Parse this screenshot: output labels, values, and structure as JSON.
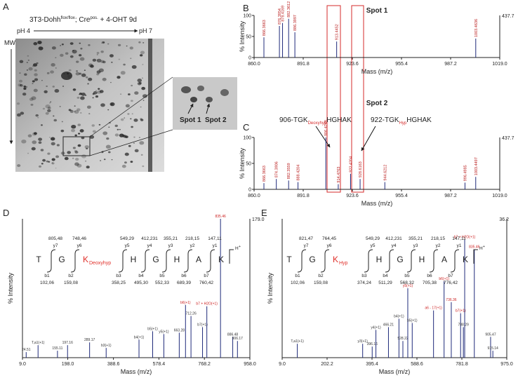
{
  "panel_labels": [
    "A",
    "B",
    "C",
    "D",
    "E"
  ],
  "gel": {
    "title": "3T3-Dohh",
    "title_sup1": "flox/flox",
    "title_mid": "; Cre",
    "title_sup2": "pos.",
    "title_end": " + 4-OHT 9d",
    "ph_left": "pH 4",
    "ph_right": "pH 7",
    "mw": "MW",
    "spot1": "Spot 1",
    "spot2": "Spot 2"
  },
  "chart_data": [
    {
      "type": "spectrum",
      "title": "Spot 1",
      "x_label": "Mass (m/z)",
      "y_label": "% Intensity",
      "max_count": "437.7",
      "color": "#1f2a7a",
      "xlim": [
        860.0,
        1019.0
      ],
      "xticks": [
        {
          "value": 860.0,
          "label": "860.0"
        },
        891.8,
        923.6,
        955.4,
        987.2,
        {
          "value": 1019.0,
          "label": "1019.0"
        }
      ],
      "ylim": [
        0,
        100
      ],
      "yticks": [
        0,
        50,
        100
      ],
      "x": [
        866.3663,
        876.3954,
        878.4169,
        882.3612,
        886.3997,
        913.4452,
        1003.4636
      ],
      "values": [
        48,
        75,
        82,
        92,
        60,
        38,
        45
      ],
      "peak_labels": [
        "866.3663",
        "876.3954",
        "878.4169",
        "882.3612",
        "886.3997",
        "913.4452",
        "1003.4636"
      ]
    },
    {
      "type": "spectrum",
      "title": "Spot 2",
      "x_label": "Mass (m/z)",
      "y_label": "% Intensity",
      "max_count": "437.7",
      "color": "#1f2a7a",
      "xlim": [
        860.0,
        1019.0
      ],
      "xticks": [
        {
          "value": 860.0,
          "label": "860.0"
        },
        891.8,
        923.6,
        955.4,
        987.2,
        {
          "value": 1019.0,
          "label": "1019.0"
        }
      ],
      "ylim": [
        0,
        100
      ],
      "yticks": [
        0,
        50,
        100
      ],
      "x": [
        866.3663,
        874.3906,
        882.3559,
        888.4204,
        906.4248,
        914.4763,
        922.4204,
        928.6163,
        944.6212,
        996.4985,
        1003.4497
      ],
      "values": [
        12,
        20,
        17,
        14,
        100,
        10,
        30,
        20,
        14,
        13,
        24
      ],
      "peak_labels": [
        "866.3663",
        "874.3906",
        "882.3559",
        "888.4204",
        "906.4248",
        "914.4763",
        "922.4204",
        "928.6163",
        "944.6212",
        "996.4985",
        "1003.4497"
      ],
      "annotations": [
        {
          "prefix": "906-TGK",
          "sub": "Deoxyhyp",
          "suffix": "HGHAK"
        },
        {
          "prefix": "922-TGK",
          "sub": "Hyp",
          "suffix": "HGHAK"
        }
      ]
    },
    {
      "type": "spectrum",
      "x_label": "Mass (m/z)",
      "y_label": "% Intensity",
      "max_count": "179.0",
      "color": "#1f2a7a",
      "xlim": [
        9.0,
        958.0
      ],
      "xticks": [
        {
          "value": 9.0,
          "label": "9.0"
        },
        {
          "value": 198.0,
          "label": "198.0"
        },
        388.6,
        578.4,
        768.2,
        {
          "value": 958.0,
          "label": "958.0"
        }
      ],
      "ylim": [
        0,
        100
      ],
      "x": [
        24.51,
        74.1,
        155.11,
        197.16,
        289.17,
        358.25,
        495.3,
        552.33,
        599.0,
        663.28,
        689.39,
        712.26,
        760.42,
        778.4,
        835.46,
        886.48,
        906.17
      ],
      "values": [
        4,
        9,
        5,
        9,
        11,
        7,
        13,
        19,
        17,
        18,
        38,
        30,
        22,
        37,
        100,
        15,
        12
      ],
      "peak_labels": [
        "24.51",
        "T,a1(+1)",
        "155.11",
        "197.16",
        "289.17",
        "b3(+1)",
        "b4(+1)",
        "b5(+1)",
        "y5(+1)",
        "663.28",
        "b6(+1)",
        "712.26",
        "b7(+1)",
        "b7 + H2O(+1)",
        "835.46",
        "886.48",
        "906.17"
      ],
      "peptide": {
        "residues": [
          "T",
          "G",
          "K",
          "H",
          "G",
          "H",
          "A",
          "K"
        ],
        "modification": "Deoxyhyp",
        "charge": "H",
        "charge_sup": "+",
        "y_names": [
          "y7",
          "y6",
          "y5",
          "y4",
          "y3",
          "y2",
          "y1"
        ],
        "y_values": [
          "805,48",
          "748,46",
          "549,29",
          "412,231",
          "355,21",
          "218,15",
          "147,11"
        ],
        "b_names": [
          "b1",
          "b2",
          "b3",
          "b4",
          "b5",
          "b6",
          "b7"
        ],
        "b_values": [
          "102,06",
          "159,08",
          "358,25",
          "495,30",
          "552,33",
          "689,39",
          "760,42"
        ]
      }
    },
    {
      "type": "spectrum",
      "x_label": "Mass (m/z)",
      "y_label": "% Intensity",
      "max_count": "36.2",
      "color": "#1f2a7a",
      "xlim": [
        9.0,
        975.0
      ],
      "xticks": [
        {
          "value": 9.0,
          "label": "9.0"
        },
        202.2,
        395.4,
        588.6,
        781.8,
        {
          "value": 975.0,
          "label": "975.0"
        }
      ],
      "ylim": [
        0,
        100
      ],
      "x": [
        74.1,
        355.21,
        396.16,
        412.23,
        466.21,
        511.29,
        528.22,
        549.29,
        568.32,
        660.0,
        705.38,
        736.36,
        776.42,
        788.29,
        794.0,
        835.46,
        905.47,
        915.14
      ],
      "values": [
        10,
        10,
        8,
        20,
        22,
        28,
        12,
        50,
        25,
        34,
        55,
        40,
        32,
        22,
        85,
        78,
        15,
        5
      ],
      "peak_labels": [
        "T,a1(+1)",
        "y3(+1)",
        "396.16",
        "y4(+1)",
        "466.21",
        "b4(+1)",
        "528.22",
        "y5(+1)",
        "b5(+1)",
        "a6 - 17(+1)",
        "b6(+1)",
        "736.36",
        "b7(+1)",
        "788.29",
        "b7 + H2O(+1)",
        "835.46",
        "905.47",
        "915.14"
      ],
      "peptide": {
        "residues": [
          "T",
          "G",
          "K",
          "H",
          "G",
          "H",
          "A",
          "K"
        ],
        "modification": "Hyp",
        "charge": "H",
        "charge_sup": "+",
        "y_names": [
          "y7",
          "y6",
          "y5",
          "y4",
          "y3",
          "y2",
          "y1"
        ],
        "y_values": [
          "821,47",
          "764,45",
          "549,29",
          "412,231",
          "355,21",
          "218,15",
          "147,11"
        ],
        "b_names": [
          "b1",
          "b2",
          "b3",
          "b4",
          "b5",
          "b6",
          "b7"
        ],
        "b_values": [
          "102,06",
          "159,08",
          "374,24",
          "511,29",
          "568,32",
          "705,38",
          "776,42"
        ]
      }
    }
  ]
}
